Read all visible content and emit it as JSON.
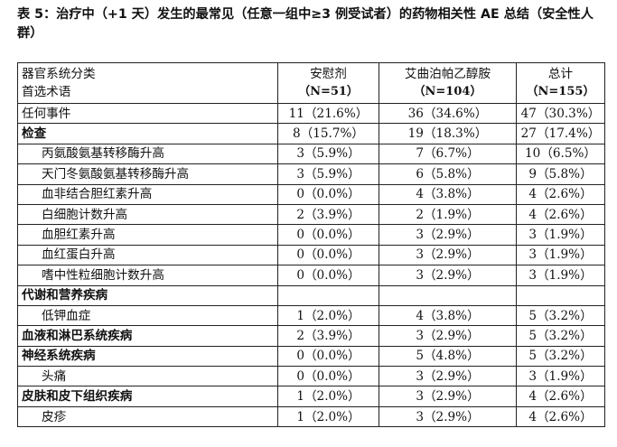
{
  "caption": "表 5：治疗中（+1 天）发生的最常见（任意一组中≥3 例受试者）的药物相关性 AE 总结（安全性人群）",
  "header": {
    "col1_line1": "器官系统分类",
    "col1_line2": "首选术语",
    "col2_line1": "安慰剂",
    "col2_line2": "（N=51）",
    "col3_line1": "艾曲泊帕乙醇胺",
    "col3_line2": "（N=104）",
    "col4_line1": "总计",
    "col4_line2": "（N=155）"
  },
  "rows": [
    {
      "term": "任何事件",
      "placebo": "11（21.6%）",
      "drug": "36（34.6%）",
      "total": "47（30.3%）"
    },
    {
      "term": "检查",
      "placebo": "8（15.7%）",
      "drug": "19（18.3%）",
      "total": "27（17.4%）"
    },
    {
      "term": "丙氨酸氨基转移酶升高",
      "placebo": "3（5.9%）",
      "drug": "7（6.7%）",
      "total": "10（6.5%）"
    },
    {
      "term": "天门冬氨酸氨基转移酶升高",
      "placebo": "3（5.9%）",
      "drug": "6（5.8%）",
      "total": "9（5.8%）"
    },
    {
      "term": "血非结合胆红素升高",
      "placebo": "0（0.0%）",
      "drug": "4（3.8%）",
      "total": "4（2.6%）"
    },
    {
      "term": "白细胞计数升高",
      "placebo": "2（3.9%）",
      "drug": "2（1.9%）",
      "total": "4（2.6%）"
    },
    {
      "term": "血胆红素升高",
      "placebo": "0（0.0%）",
      "drug": "3（2.9%）",
      "total": "3（1.9%）"
    },
    {
      "term": "血红蛋白升高",
      "placebo": "0（0.0%）",
      "drug": "3（2.9%）",
      "total": "3（1.9%）"
    },
    {
      "term": "嗜中性粒细胞计数升高",
      "placebo": "0（0.0%）",
      "drug": "3（2.9%）",
      "total": "3（1.9%）"
    },
    {
      "term": "代谢和营养疾病",
      "placebo": "",
      "drug": "",
      "total": ""
    },
    {
      "term": "低钾血症",
      "placebo": "1（2.0%）",
      "drug": "4（3.8%）",
      "total": "5（3.2%）"
    },
    {
      "term": "血液和淋巴系统疾病",
      "placebo": "2（3.9%）",
      "drug": "3（2.9%）",
      "total": "5（3.2%）"
    },
    {
      "term": "神经系统疾病",
      "placebo": "0（0.0%）",
      "drug": "5（4.8%）",
      "total": "5（3.2%）"
    },
    {
      "term": "头痛",
      "placebo": "0（0.0%）",
      "drug": "3（2.9%）",
      "total": "3（1.9%）"
    },
    {
      "term": "皮肤和皮下组织疾病",
      "placebo": "1（2.0%）",
      "drug": "3（2.9%）",
      "total": "4（2.6%）"
    },
    {
      "term": "皮疹",
      "placebo": "1（2.0%）",
      "drug": "3（2.9%）",
      "total": "4（2.6%）"
    }
  ]
}
